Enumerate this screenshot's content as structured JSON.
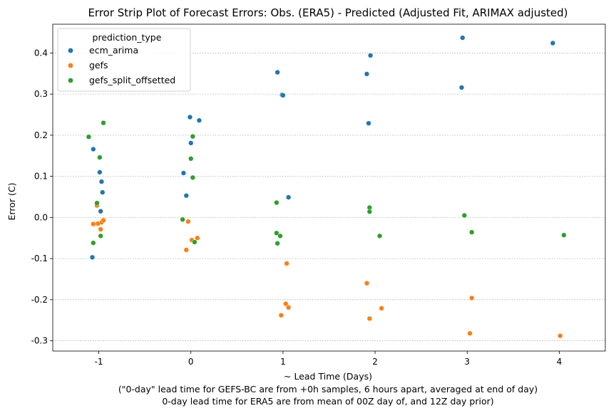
{
  "chart_data": {
    "type": "scatter",
    "title": "Error Strip Plot of Forecast Errors: Obs. (ERA5) - Predicted (Adjusted Fit, ARIMAX adjusted)",
    "xlabel": "~ Lead Time (Days)",
    "xlabel_notes": [
      "(\"0-day\" lead time for GEFS-BC are from +0h samples, 6 hours apart, averaged at end of day)",
      "0-day lead time for ERA5 are from mean of 00Z day of, and 12Z day prior)"
    ],
    "ylabel": "Error (C)",
    "xlim": [
      -1.5,
      4.5
    ],
    "ylim": [
      -0.325,
      0.47
    ],
    "x_ticks": [
      -1,
      0,
      1,
      2,
      3,
      4
    ],
    "y_ticks": [
      -0.3,
      -0.2,
      -0.1,
      0.0,
      0.1,
      0.2,
      0.3,
      0.4
    ],
    "grid": "y-dotted",
    "legend": {
      "title": "prediction_type",
      "position": "top-left"
    },
    "series": [
      {
        "name": "ecm_arima",
        "color": "#1f77b4",
        "points": [
          {
            "x": -1.07,
            "y": -0.097
          },
          {
            "x": -0.98,
            "y": 0.015
          },
          {
            "x": -0.96,
            "y": 0.061
          },
          {
            "x": -0.97,
            "y": 0.087
          },
          {
            "x": -0.99,
            "y": 0.11
          },
          {
            "x": -1.06,
            "y": 0.166
          },
          {
            "x": -0.05,
            "y": 0.053
          },
          {
            "x": -0.08,
            "y": 0.108
          },
          {
            "x": 0.0,
            "y": 0.181
          },
          {
            "x": -0.01,
            "y": 0.244
          },
          {
            "x": 0.09,
            "y": 0.236
          },
          {
            "x": 1.06,
            "y": 0.049
          },
          {
            "x": 0.99,
            "y": 0.298
          },
          {
            "x": 1.0,
            "y": 0.297
          },
          {
            "x": 0.94,
            "y": 0.353
          },
          {
            "x": 1.93,
            "y": 0.229
          },
          {
            "x": 1.91,
            "y": 0.349
          },
          {
            "x": 1.95,
            "y": 0.394
          },
          {
            "x": 2.94,
            "y": 0.316
          },
          {
            "x": 2.95,
            "y": 0.437
          },
          {
            "x": 3.93,
            "y": 0.424
          }
        ]
      },
      {
        "name": "gefs",
        "color": "#ff7f0e",
        "points": [
          {
            "x": -1.06,
            "y": -0.016
          },
          {
            "x": -1.01,
            "y": -0.015
          },
          {
            "x": -0.97,
            "y": -0.012
          },
          {
            "x": -0.95,
            "y": -0.007
          },
          {
            "x": -0.98,
            "y": -0.029
          },
          {
            "x": -1.02,
            "y": 0.029
          },
          {
            "x": -0.03,
            "y": -0.01
          },
          {
            "x": 0.01,
            "y": -0.055
          },
          {
            "x": 0.07,
            "y": -0.05
          },
          {
            "x": -0.05,
            "y": -0.079
          },
          {
            "x": 1.04,
            "y": -0.112
          },
          {
            "x": 1.03,
            "y": -0.21
          },
          {
            "x": 1.06,
            "y": -0.219
          },
          {
            "x": 0.98,
            "y": -0.238
          },
          {
            "x": 1.91,
            "y": -0.16
          },
          {
            "x": 2.07,
            "y": -0.221
          },
          {
            "x": 1.94,
            "y": -0.246
          },
          {
            "x": 3.05,
            "y": -0.196
          },
          {
            "x": 3.03,
            "y": -0.282
          },
          {
            "x": 4.01,
            "y": -0.288
          }
        ]
      },
      {
        "name": "gefs_split_offsetted",
        "color": "#2ca02c",
        "points": [
          {
            "x": -1.06,
            "y": -0.062
          },
          {
            "x": -0.98,
            "y": -0.045
          },
          {
            "x": -1.02,
            "y": 0.035
          },
          {
            "x": -0.99,
            "y": 0.146
          },
          {
            "x": -1.11,
            "y": 0.196
          },
          {
            "x": -0.95,
            "y": 0.23
          },
          {
            "x": -0.09,
            "y": -0.005
          },
          {
            "x": 0.04,
            "y": -0.06
          },
          {
            "x": 0.02,
            "y": 0.097
          },
          {
            "x": 0.0,
            "y": 0.143
          },
          {
            "x": 0.02,
            "y": 0.197
          },
          {
            "x": 0.93,
            "y": 0.036
          },
          {
            "x": 0.93,
            "y": -0.038
          },
          {
            "x": 0.97,
            "y": -0.045
          },
          {
            "x": 0.94,
            "y": -0.063
          },
          {
            "x": 1.94,
            "y": 0.024
          },
          {
            "x": 1.94,
            "y": 0.014
          },
          {
            "x": 2.05,
            "y": -0.045
          },
          {
            "x": 2.97,
            "y": 0.005
          },
          {
            "x": 3.05,
            "y": -0.036
          },
          {
            "x": 4.05,
            "y": -0.043
          }
        ]
      }
    ]
  }
}
